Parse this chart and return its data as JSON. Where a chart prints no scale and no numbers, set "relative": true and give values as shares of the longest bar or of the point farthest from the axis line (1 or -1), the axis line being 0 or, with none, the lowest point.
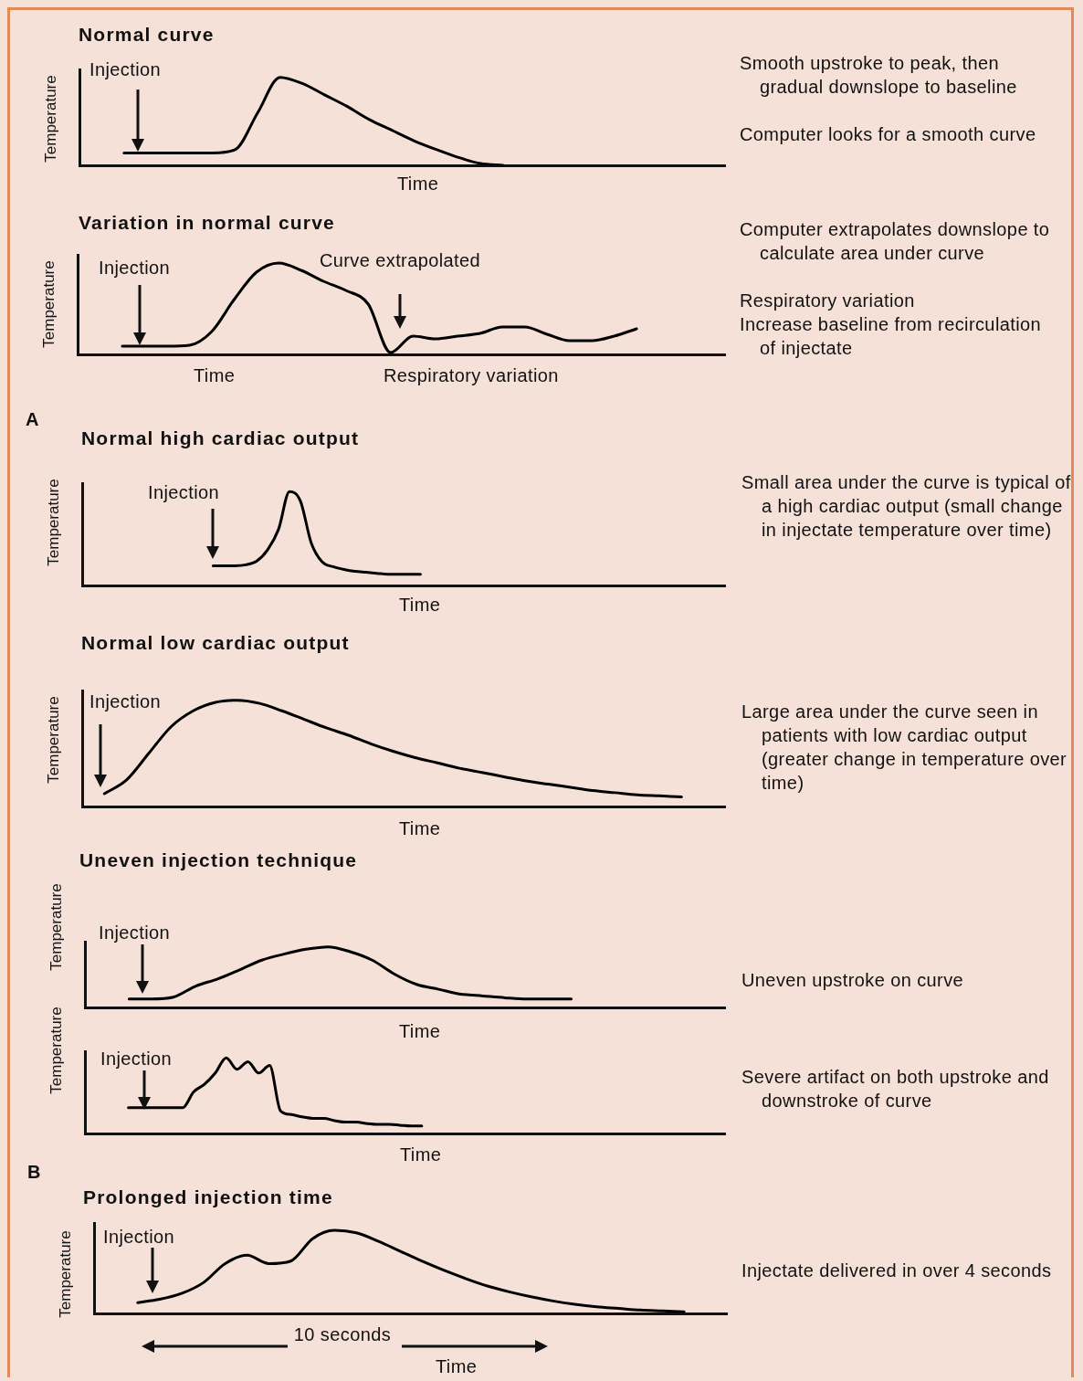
{
  "chart_data": [
    {
      "type": "line",
      "title": "Normal curve",
      "ylabel": "Temperature",
      "xlabel": "Time",
      "relative": true,
      "color": "#000000",
      "categories": [
        null,
        null,
        null,
        null,
        null,
        null,
        null,
        null,
        null,
        null,
        null,
        null,
        null,
        null,
        null,
        null,
        null,
        null,
        null,
        null,
        null,
        null,
        null,
        null,
        null,
        null,
        null,
        null,
        null,
        null
      ],
      "values": [
        null,
        null,
        0.14,
        0.14,
        0.14,
        0.14,
        0.14,
        0.18,
        0.6,
        1,
        0.93,
        0.8,
        0.67,
        0.52,
        0.4,
        0.28,
        0.18,
        0.09,
        0.02,
        0,
        null,
        null,
        null,
        null,
        null,
        null,
        null,
        null,
        null,
        null
      ],
      "annotations": [
        "Injection",
        "Smooth upstroke to peak, then gradual downslope to baseline",
        "Computer looks for a smooth curve"
      ]
    },
    {
      "type": "line",
      "title": "Variation in normal curve",
      "ylabel": "Temperature",
      "xlabel": "Time",
      "relative": true,
      "color": "#000000",
      "categories": [
        null,
        null,
        null,
        null,
        null,
        null,
        null,
        null,
        null,
        null,
        null,
        null,
        null,
        null,
        null,
        null,
        null,
        null,
        null,
        null,
        null,
        null,
        null,
        null,
        null,
        null,
        null,
        null,
        null,
        null
      ],
      "values": [
        null,
        null,
        0.09,
        0.09,
        0.09,
        0.1,
        0.25,
        0.6,
        0.9,
        1,
        0.92,
        0.8,
        0.7,
        0.55,
        0.02,
        0.2,
        0.17,
        0.2,
        0.23,
        0.3,
        0.3,
        0.22,
        0.15,
        0.15,
        0.2,
        0.28,
        null,
        null,
        null,
        null
      ],
      "annotations": [
        "Injection",
        "Curve extrapolated",
        "Respiratory variation",
        "Computer extrapolates downslope to calculate area under curve",
        "Respiratory variation",
        "Increase baseline from recirculation of injectate",
        "A"
      ]
    },
    {
      "type": "line",
      "title": "Normal high cardiac output",
      "ylabel": "Temperature",
      "xlabel": "Time",
      "relative": true,
      "color": "#000000",
      "categories": [
        null,
        null,
        null,
        null,
        null,
        null,
        null,
        null,
        null,
        null,
        null,
        null,
        null,
        null,
        null,
        null,
        null,
        null,
        null,
        null,
        null,
        null,
        null,
        null,
        null,
        null,
        null,
        null,
        null,
        null,
        null,
        null,
        null,
        null,
        null,
        null,
        null,
        null,
        null,
        null,
        null,
        null,
        null,
        null,
        null,
        null,
        null,
        null,
        null,
        null,
        null,
        null,
        null,
        null,
        null,
        null,
        null,
        null,
        null,
        null
      ],
      "values": [
        null,
        null,
        null,
        null,
        null,
        null,
        null,
        null,
        null,
        null,
        null,
        null,
        0.21,
        0.21,
        0.21,
        0.22,
        0.26,
        0.38,
        0.6,
        1,
        0.9,
        0.45,
        0.25,
        0.2,
        0.17,
        0.15,
        0.14,
        0.13,
        0.12,
        0.12,
        0.12,
        0.12,
        null,
        null,
        null,
        null,
        null,
        null,
        null,
        null,
        null,
        null,
        null,
        null,
        null,
        null,
        null,
        null,
        null,
        null,
        null,
        null,
        null,
        null,
        null,
        null,
        null,
        null,
        null,
        null
      ],
      "annotations": [
        "Injection",
        "Small area under the curve is typical of a high cardiac output (small change in injectate temperature over time)"
      ]
    },
    {
      "type": "line",
      "title": "Normal low cardiac output",
      "ylabel": "Temperature",
      "xlabel": "Time",
      "relative": true,
      "color": "#000000",
      "categories": [
        null,
        null,
        null,
        null,
        null,
        null,
        null,
        null,
        null,
        null,
        null,
        null,
        null,
        null,
        null,
        null,
        null,
        null,
        null,
        null,
        null,
        null,
        null,
        null,
        null,
        null,
        null,
        null,
        null,
        null
      ],
      "values": [
        null,
        0.12,
        0.25,
        0.5,
        0.75,
        0.9,
        0.98,
        1,
        0.97,
        0.9,
        0.82,
        0.74,
        0.67,
        0.59,
        0.52,
        0.46,
        0.41,
        0.36,
        0.32,
        0.28,
        0.24,
        0.21,
        0.18,
        0.15,
        0.13,
        0.11,
        0.1,
        0.09,
        null,
        null
      ],
      "annotations": [
        "Injection",
        "Large area under the curve seen in patients with low cardiac output (greater change in temperature over time)"
      ]
    },
    {
      "type": "line",
      "title": "Uneven injection technique",
      "ylabel": "Temperature",
      "xlabel": "Time",
      "relative": true,
      "color": "#000000",
      "categories": [
        null,
        null,
        null,
        null,
        null,
        null,
        null,
        null,
        null,
        null,
        null,
        null,
        null,
        null,
        null,
        null,
        null,
        null,
        null,
        null,
        null,
        null,
        null,
        null,
        null,
        null,
        null,
        null,
        null,
        null
      ],
      "values": [
        null,
        null,
        0.14,
        0.14,
        0.17,
        0.35,
        0.47,
        0.62,
        0.78,
        0.88,
        0.96,
        1,
        0.92,
        0.78,
        0.55,
        0.38,
        0.3,
        0.22,
        0.19,
        0.16,
        0.14,
        0.14,
        0.14,
        null,
        null,
        null,
        null,
        null,
        null,
        null
      ],
      "annotations": [
        "Injection",
        "Uneven upstroke on curve"
      ]
    },
    {
      "type": "line",
      "ylabel": "Temperature",
      "xlabel": "Time",
      "relative": true,
      "color": "#000000",
      "categories": [
        null,
        null,
        null,
        null,
        null,
        null,
        null,
        null,
        null,
        null,
        null,
        null,
        null,
        null,
        null,
        null,
        null,
        null,
        null,
        null,
        null,
        null,
        null,
        null,
        null,
        null,
        null,
        null,
        null,
        null,
        null,
        null,
        null,
        null,
        null,
        null,
        null,
        null,
        null,
        null,
        null,
        null,
        null,
        null,
        null,
        null,
        null,
        null,
        null,
        null,
        null,
        null,
        null,
        null,
        null,
        null,
        null,
        null,
        null,
        null
      ],
      "values": [
        null,
        null,
        null,
        null,
        0.34,
        0.34,
        0.34,
        0.34,
        0.34,
        0.34,
        0.55,
        0.65,
        0.8,
        1,
        0.85,
        0.95,
        0.8,
        0.9,
        0.3,
        0.25,
        0.22,
        0.2,
        0.2,
        0.17,
        0.15,
        0.15,
        0.13,
        0.12,
        0.12,
        0.11,
        0.1,
        0.1,
        null,
        null,
        null,
        null,
        null,
        null,
        null,
        null,
        null,
        null,
        null,
        null,
        null,
        null,
        null,
        null,
        null,
        null,
        null,
        null,
        null,
        null,
        null,
        null,
        null,
        null,
        null,
        null
      ],
      "annotations": [
        "Injection",
        "Severe artifact on both upstroke and downstroke of curve",
        "B"
      ]
    },
    {
      "type": "line",
      "title": "Prolonged injection time",
      "ylabel": "Temperature",
      "xlabel": "Time",
      "relative": true,
      "color": "#000000",
      "categories": [
        null,
        null,
        null,
        null,
        null,
        null,
        null,
        null,
        null,
        null,
        null,
        null,
        null,
        null,
        null,
        null,
        null,
        null,
        null,
        null,
        null,
        null,
        null,
        null,
        null,
        null,
        null,
        null,
        null,
        null
      ],
      "values": [
        null,
        null,
        0.13,
        0.17,
        0.24,
        0.37,
        0.6,
        0.7,
        0.6,
        0.63,
        0.9,
        1,
        0.97,
        0.87,
        0.75,
        0.63,
        0.52,
        0.42,
        0.33,
        0.26,
        0.2,
        0.15,
        0.11,
        0.08,
        0.06,
        0.04,
        0.03,
        0.02,
        null,
        null
      ],
      "annotations": [
        "Injection",
        "Injectate delivered in over 4 seconds",
        "10 seconds"
      ]
    }
  ]
}
